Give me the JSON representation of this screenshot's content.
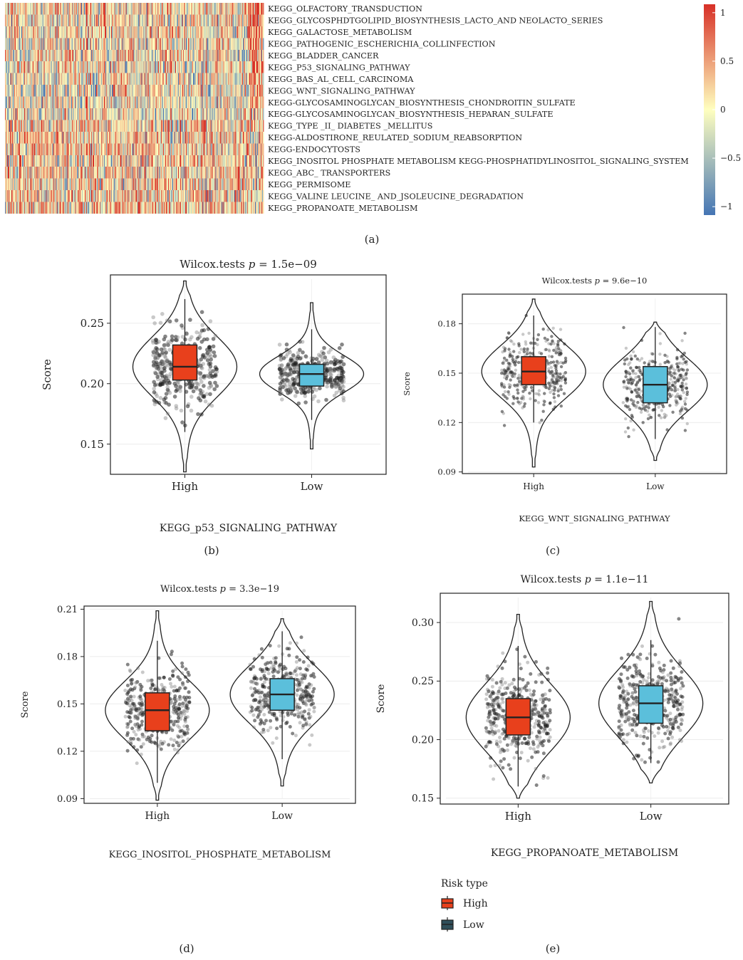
{
  "figure": {
    "panel_labels": [
      "(a)",
      "(b)",
      "(c)",
      "(d)",
      "(e)"
    ]
  },
  "chart_data": [
    {
      "type": "heatmap",
      "panel": "(a)",
      "rows": [
        "KEGG_OLFACTORY_TRANSDUCTION",
        "KEGG_GLYCOSPHDTGOLIPID_BIOSYNTHESIS_LACTO_AND NEOLACTO_SERIES",
        "KEGG_GALACTOSE_METABOLISM",
        "KEGG_PATHOGENIC_ESCHERICHIA_COLLINFECTION",
        "KEGG_BLADDER_CANCER",
        "KEGG_P53_SIGNALING_PATHWAY",
        "KEGG_BAS_AL_CELL_CARCINOMA",
        "KEGG_WNT_SIGNALING_PATHWAY",
        "KEGG-GLYCOSAMINOGLYCAN_BIOSYNTHESIS_CHONDROITIN_SULFATE",
        "KEGG-GLYCOSAMINOGLYCAN_BIOSYNTHESIS_HEPARAN_SULFATE",
        "KEGG_TYPE _II_ DIABETES _MELLITUS",
        "KEGG-ALDOSTIRONE_REULATED_SODIUM_REABSORPTION",
        "KEGG-ENDOCYTOSTS",
        "KEGG_INOSITOL PHOSPHATE METABOLISM KEGG-PHOSPHATIDYLINOSITOL_SIGNALING_SYSTEM",
        "KEGG_ABC_ TRANSPORTERS",
        "KEGG_PERMISOME",
        "KEGG_VALINE LEUCINE_ AND_JSOLEUCINE_DEGRADATION",
        "KEGG_PROPANOATE_METABOLISM"
      ],
      "row_bias": [
        0.15,
        0.1,
        0.1,
        0.05,
        0.05,
        0.05,
        0.0,
        0.0,
        -0.05,
        -0.05,
        0.15,
        0.2,
        0.2,
        0.15,
        0.15,
        0.1,
        0.15,
        0.2
      ],
      "columns": 360,
      "colorbar": {
        "ticks": [
          1,
          0.5,
          0,
          -0.5,
          -1
        ],
        "min": -1,
        "max": 1
      },
      "colors": {
        "low": "#4575b4",
        "mid": "#ffffbf",
        "high": "#d73027"
      }
    },
    {
      "type": "violin-box",
      "panel": "(b)",
      "title_prefix": "Wilcox.tests ",
      "title_p": "p",
      "title_value": " = 1.5e−09",
      "xlabel": "KEGG_p53_SIGNALING_PATHWAY",
      "ylabel": "Score",
      "ylim": [
        0.125,
        0.29
      ],
      "yticks": [
        "0.15",
        "0.20",
        "0.25"
      ],
      "grid": true,
      "groups": [
        {
          "name": "High",
          "q1": 0.203,
          "median": 0.214,
          "q3": 0.232,
          "whisker_low": 0.16,
          "whisker_high": 0.27,
          "min": 0.127,
          "max": 0.285,
          "spread": 0.031,
          "color": "#e8401c"
        },
        {
          "name": "Low",
          "q1": 0.198,
          "median": 0.208,
          "q3": 0.216,
          "whisker_low": 0.17,
          "whisker_high": 0.245,
          "min": 0.146,
          "max": 0.267,
          "spread": 0.019,
          "color": "#5bbfdb"
        }
      ]
    },
    {
      "type": "violin-box",
      "panel": "(c)",
      "title_prefix": "Wilcox.tests ",
      "title_p": "p",
      "title_value": " = 9.6e−10",
      "xlabel": "KEGG_WNT_SIGNALING_PATHWAY",
      "ylabel": "Score",
      "ylim": [
        0.089,
        0.198
      ],
      "yticks": [
        "0.09",
        "0.12",
        "0.15",
        "0.18"
      ],
      "grid": true,
      "groups": [
        {
          "name": "High",
          "q1": 0.143,
          "median": 0.151,
          "q3": 0.16,
          "whisker_low": 0.12,
          "whisker_high": 0.185,
          "min": 0.093,
          "max": 0.195,
          "spread": 0.02,
          "color": "#e8401c"
        },
        {
          "name": "Low",
          "q1": 0.132,
          "median": 0.143,
          "q3": 0.154,
          "whisker_low": 0.11,
          "whisker_high": 0.178,
          "min": 0.097,
          "max": 0.181,
          "spread": 0.02,
          "color": "#5bbfdb"
        }
      ]
    },
    {
      "type": "violin-box",
      "panel": "(d)",
      "title_prefix": "Wilcox.tests ",
      "title_p": "p",
      "title_value": " = 3.3e−19",
      "xlabel": "KEGG_INOSITOL_PHOSPHATE_METABOLISM",
      "ylabel": "Score",
      "ylim": [
        0.087,
        0.212
      ],
      "yticks": [
        "0.09",
        "0.12",
        "0.15",
        "0.18",
        "0.21"
      ],
      "grid": true,
      "groups": [
        {
          "name": "High",
          "q1": 0.133,
          "median": 0.146,
          "q3": 0.157,
          "whisker_low": 0.1,
          "whisker_high": 0.19,
          "min": 0.089,
          "max": 0.209,
          "spread": 0.023,
          "color": "#e8401c"
        },
        {
          "name": "Low",
          "q1": 0.146,
          "median": 0.156,
          "q3": 0.166,
          "whisker_low": 0.115,
          "whisker_high": 0.196,
          "min": 0.098,
          "max": 0.204,
          "spread": 0.023,
          "color": "#5bbfdb"
        }
      ]
    },
    {
      "type": "violin-box",
      "panel": "(e)",
      "title_prefix": "Wilcox.tests ",
      "title_p": "p",
      "title_value": " = 1.1e−11",
      "xlabel": "KEGG_PROPANOATE_METABOLISM",
      "ylabel": "Score",
      "ylim": [
        0.145,
        0.325
      ],
      "yticks": [
        "0.15",
        "0.20",
        "0.25",
        "0.30"
      ],
      "grid": true,
      "groups": [
        {
          "name": "High",
          "q1": 0.204,
          "median": 0.219,
          "q3": 0.235,
          "whisker_low": 0.16,
          "whisker_high": 0.28,
          "min": 0.15,
          "max": 0.307,
          "spread": 0.036,
          "color": "#e8401c"
        },
        {
          "name": "Low",
          "q1": 0.214,
          "median": 0.231,
          "q3": 0.246,
          "whisker_low": 0.18,
          "whisker_high": 0.285,
          "min": 0.163,
          "max": 0.318,
          "spread": 0.036,
          "color": "#5bbfdb"
        }
      ]
    }
  ],
  "legend": {
    "title": "Risk type",
    "items": [
      {
        "label": "High",
        "color": "#e8401c"
      },
      {
        "label": "Low",
        "color": "#2f4f5a"
      }
    ]
  }
}
